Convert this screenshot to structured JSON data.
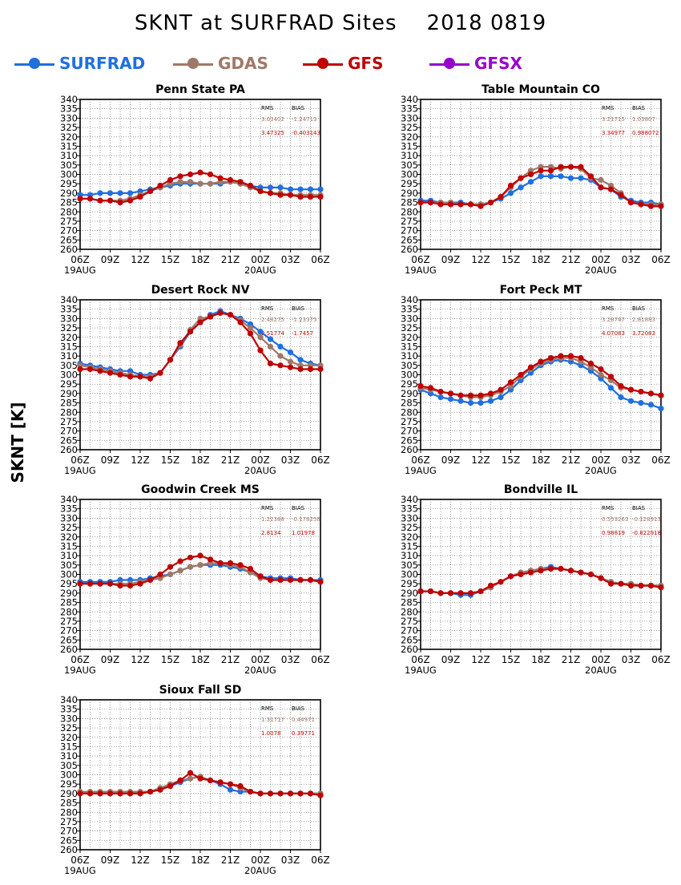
{
  "title": "SKNT at SURFRAD Sites    2018 0819",
  "ylabel": "SKNT [K]",
  "legend": [
    {
      "name": "SURFRAD",
      "color": "#1f6fe0"
    },
    {
      "name": "GDAS",
      "color": "#a07868"
    },
    {
      "name": "GFS",
      "color": "#c00000"
    },
    {
      "name": "GFSX",
      "color": "#9900cc"
    }
  ],
  "chart_data": [
    {
      "type": "line",
      "title": "Penn State PA",
      "xticks": [
        "06Z",
        "09Z",
        "12Z",
        "15Z",
        "18Z",
        "21Z",
        "00Z",
        "03Z",
        "06Z"
      ],
      "xdates": [
        "19AUG",
        "20AUG"
      ],
      "yticks": [
        260,
        265,
        270,
        275,
        280,
        285,
        290,
        295,
        300,
        305,
        310,
        315,
        320,
        325,
        330,
        335,
        340
      ],
      "ylim": [
        260,
        340
      ],
      "x_hours": [
        0,
        1,
        2,
        3,
        4,
        5,
        6,
        7,
        8,
        9,
        10,
        11,
        12,
        13,
        14,
        15,
        16,
        17,
        18,
        19,
        20,
        21,
        22,
        23,
        24
      ],
      "stats": {
        "header": [
          "RMS",
          "BIAS"
        ],
        "rows": [
          [
            "3.03402",
            "-1.24713"
          ],
          [
            "3.47325",
            "-0.403143"
          ]
        ]
      },
      "series": [
        {
          "name": "SURFRAD",
          "values": [
            289,
            289,
            290,
            290,
            290,
            290,
            291,
            292,
            293,
            294,
            295,
            295,
            295,
            295,
            295,
            296,
            295,
            294,
            293,
            293,
            293,
            292,
            292,
            292,
            292
          ]
        },
        {
          "name": "GDAS",
          "values": [
            287,
            287,
            286,
            286,
            286,
            287,
            289,
            291,
            293,
            295,
            296,
            296,
            295,
            295,
            296,
            296,
            295,
            293,
            291,
            290,
            290,
            289,
            289,
            289,
            289
          ]
        },
        {
          "name": "GFS",
          "values": [
            287,
            287,
            286,
            286,
            285,
            286,
            288,
            291,
            294,
            297,
            299,
            300,
            301,
            300,
            298,
            297,
            296,
            294,
            291,
            290,
            289,
            289,
            288,
            288,
            288
          ]
        }
      ]
    },
    {
      "type": "line",
      "title": "Table Mountain CO",
      "xticks": [
        "06Z",
        "09Z",
        "12Z",
        "15Z",
        "18Z",
        "21Z",
        "00Z",
        "03Z",
        "06Z"
      ],
      "xdates": [
        "19AUG",
        "20AUG"
      ],
      "yticks": [
        260,
        265,
        270,
        275,
        280,
        285,
        290,
        295,
        300,
        305,
        310,
        315,
        320,
        325,
        330,
        335,
        340
      ],
      "ylim": [
        260,
        340
      ],
      "x_hours": [
        0,
        1,
        2,
        3,
        4,
        5,
        6,
        7,
        8,
        9,
        10,
        11,
        12,
        13,
        14,
        15,
        16,
        17,
        18,
        19,
        20,
        21,
        22,
        23,
        24
      ],
      "stats": {
        "header": [
          "RMS",
          "BIAS"
        ],
        "rows": [
          [
            "3.21715",
            "1.03807"
          ],
          [
            "3.34977",
            "0.988072"
          ]
        ]
      },
      "series": [
        {
          "name": "SURFRAD",
          "values": [
            286,
            286,
            285,
            285,
            285,
            284,
            284,
            285,
            287,
            290,
            293,
            296,
            299,
            299,
            299,
            298,
            298,
            297,
            293,
            292,
            288,
            286,
            285,
            285,
            284
          ]
        },
        {
          "name": "GDAS",
          "values": [
            285,
            285,
            285,
            285,
            284,
            284,
            284,
            285,
            288,
            293,
            298,
            302,
            304,
            304,
            303,
            304,
            303,
            298,
            297,
            294,
            290,
            285,
            284,
            284,
            284
          ]
        },
        {
          "name": "GFS",
          "values": [
            285,
            285,
            284,
            284,
            284,
            284,
            283,
            285,
            288,
            294,
            298,
            300,
            302,
            302,
            304,
            304,
            304,
            299,
            293,
            292,
            289,
            285,
            284,
            283,
            283
          ]
        }
      ]
    },
    {
      "type": "line",
      "title": "Desert Rock NV",
      "xticks": [
        "06Z",
        "09Z",
        "12Z",
        "15Z",
        "18Z",
        "21Z",
        "00Z",
        "03Z",
        "06Z"
      ],
      "xdates": [
        "19AUG",
        "20AUG"
      ],
      "yticks": [
        260,
        265,
        270,
        275,
        280,
        285,
        290,
        295,
        300,
        305,
        310,
        315,
        320,
        325,
        330,
        335,
        340
      ],
      "ylim": [
        260,
        340
      ],
      "x_hours": [
        0,
        1,
        2,
        3,
        4,
        5,
        6,
        7,
        8,
        9,
        10,
        11,
        12,
        13,
        14,
        15,
        16,
        17,
        18,
        19,
        20,
        21,
        22,
        23,
        24
      ],
      "stats": {
        "header": [
          "RMS",
          "BIAS"
        ],
        "rows": [
          [
            "2.48275",
            "-1.23375"
          ],
          [
            "2.51774",
            "-1.7457"
          ]
        ]
      },
      "series": [
        {
          "name": "SURFRAD",
          "values": [
            306,
            305,
            304,
            303,
            302,
            302,
            300,
            300,
            301,
            308,
            315,
            323,
            328,
            332,
            334,
            332,
            330,
            327,
            323,
            319,
            315,
            312,
            308,
            306,
            305
          ]
        },
        {
          "name": "GDAS",
          "values": [
            305,
            304,
            303,
            302,
            301,
            300,
            299,
            299,
            301,
            308,
            316,
            324,
            330,
            331,
            333,
            332,
            329,
            325,
            320,
            315,
            310,
            307,
            305,
            305,
            305
          ]
        },
        {
          "name": "GFS",
          "values": [
            303,
            303,
            302,
            301,
            300,
            299,
            299,
            298,
            301,
            308,
            317,
            323,
            328,
            331,
            333,
            332,
            328,
            322,
            313,
            306,
            305,
            304,
            303,
            303,
            303
          ]
        }
      ]
    },
    {
      "type": "line",
      "title": "Fort Peck MT",
      "xticks": [
        "06Z",
        "09Z",
        "12Z",
        "15Z",
        "18Z",
        "21Z",
        "00Z",
        "03Z",
        "06Z"
      ],
      "xdates": [
        "19AUG",
        "20AUG"
      ],
      "yticks": [
        260,
        265,
        270,
        275,
        280,
        285,
        290,
        295,
        300,
        305,
        310,
        315,
        320,
        325,
        330,
        335,
        340
      ],
      "ylim": [
        260,
        340
      ],
      "x_hours": [
        0,
        1,
        2,
        3,
        4,
        5,
        6,
        7,
        8,
        9,
        10,
        11,
        12,
        13,
        14,
        15,
        16,
        17,
        18,
        19,
        20,
        21,
        22,
        23,
        24
      ],
      "stats": {
        "header": [
          "RMS",
          "BIAS"
        ],
        "rows": [
          [
            "3.28747",
            "2.81883"
          ],
          [
            "4.07083",
            "3.72083"
          ]
        ]
      },
      "series": [
        {
          "name": "SURFRAD",
          "values": [
            292,
            290,
            288,
            287,
            286,
            285,
            285,
            286,
            288,
            292,
            297,
            301,
            305,
            307,
            308,
            307,
            305,
            302,
            298,
            293,
            288,
            286,
            285,
            284,
            282
          ]
        },
        {
          "name": "GDAS",
          "values": [
            293,
            292,
            291,
            290,
            289,
            288,
            288,
            289,
            291,
            294,
            299,
            303,
            306,
            308,
            309,
            309,
            307,
            304,
            300,
            297,
            293,
            292,
            291,
            290,
            289
          ]
        },
        {
          "name": "GFS",
          "values": [
            294,
            293,
            291,
            290,
            289,
            289,
            289,
            290,
            292,
            296,
            300,
            304,
            307,
            309,
            310,
            310,
            309,
            306,
            303,
            299,
            294,
            292,
            291,
            290,
            289
          ]
        }
      ]
    },
    {
      "type": "line",
      "title": "Goodwin Creek MS",
      "xticks": [
        "06Z",
        "09Z",
        "12Z",
        "15Z",
        "18Z",
        "21Z",
        "00Z",
        "03Z",
        "06Z"
      ],
      "xdates": [
        "19AUG",
        "20AUG"
      ],
      "yticks": [
        260,
        265,
        270,
        275,
        280,
        285,
        290,
        295,
        300,
        305,
        310,
        315,
        320,
        325,
        330,
        335,
        340
      ],
      "ylim": [
        260,
        340
      ],
      "x_hours": [
        0,
        1,
        2,
        3,
        4,
        5,
        6,
        7,
        8,
        9,
        10,
        11,
        12,
        13,
        14,
        15,
        16,
        17,
        18,
        19,
        20,
        21,
        22,
        23,
        24
      ],
      "stats": {
        "header": [
          "RMS",
          "BIAS"
        ],
        "rows": [
          [
            "1.22388",
            "-0.178258"
          ],
          [
            "2.8134",
            "1.01978"
          ]
        ]
      },
      "series": [
        {
          "name": "SURFRAD",
          "values": [
            296,
            296,
            296,
            296,
            297,
            297,
            297,
            298,
            299,
            300,
            302,
            304,
            305,
            305,
            305,
            304,
            303,
            301,
            299,
            298,
            298,
            298,
            297,
            297,
            297
          ]
        },
        {
          "name": "GDAS",
          "values": [
            295,
            295,
            295,
            295,
            295,
            295,
            296,
            297,
            298,
            300,
            302,
            304,
            305,
            306,
            306,
            305,
            304,
            301,
            298,
            297,
            297,
            297,
            297,
            297,
            296
          ]
        },
        {
          "name": "GFS",
          "values": [
            295,
            295,
            295,
            295,
            294,
            294,
            295,
            297,
            300,
            304,
            307,
            309,
            310,
            308,
            306,
            306,
            305,
            303,
            299,
            297,
            297,
            297,
            297,
            297,
            296
          ]
        }
      ]
    },
    {
      "type": "line",
      "title": "Bondville IL",
      "xticks": [
        "06Z",
        "09Z",
        "12Z",
        "15Z",
        "18Z",
        "21Z",
        "00Z",
        "03Z",
        "06Z"
      ],
      "xdates": [
        "19AUG",
        "20AUG"
      ],
      "yticks": [
        260,
        265,
        270,
        275,
        280,
        285,
        290,
        295,
        300,
        305,
        310,
        315,
        320,
        325,
        330,
        335,
        340
      ],
      "ylim": [
        260,
        340
      ],
      "x_hours": [
        0,
        1,
        2,
        3,
        4,
        5,
        6,
        7,
        8,
        9,
        10,
        11,
        12,
        13,
        14,
        15,
        16,
        17,
        18,
        19,
        20,
        21,
        22,
        23,
        24
      ],
      "stats": {
        "header": [
          "RMS",
          "BIAS"
        ],
        "rows": [
          [
            "0.553263",
            "-0.128913"
          ],
          [
            "0.98819",
            "-0.822918"
          ]
        ]
      },
      "series": [
        {
          "name": "SURFRAD",
          "values": [
            291,
            291,
            290,
            290,
            289,
            289,
            291,
            293,
            296,
            299,
            301,
            302,
            303,
            304,
            303,
            302,
            301,
            300,
            298,
            296,
            295,
            295,
            294,
            294,
            294
          ]
        },
        {
          "name": "GDAS",
          "values": [
            291,
            291,
            290,
            290,
            290,
            290,
            291,
            293,
            296,
            299,
            301,
            302,
            303,
            303,
            303,
            302,
            301,
            300,
            298,
            296,
            295,
            295,
            294,
            294,
            294
          ]
        },
        {
          "name": "GFS",
          "values": [
            291,
            291,
            290,
            290,
            290,
            290,
            291,
            294,
            296,
            299,
            300,
            301,
            302,
            303,
            303,
            302,
            301,
            300,
            298,
            295,
            295,
            294,
            294,
            294,
            293
          ]
        }
      ]
    },
    {
      "type": "line",
      "title": "Sioux Fall SD",
      "xticks": [
        "06Z",
        "09Z",
        "12Z",
        "15Z",
        "18Z",
        "21Z",
        "00Z",
        "03Z",
        "06Z"
      ],
      "xdates": [
        "19AUG",
        "20AUG"
      ],
      "yticks": [
        260,
        265,
        270,
        275,
        280,
        285,
        290,
        295,
        300,
        305,
        310,
        315,
        320,
        325,
        330,
        335,
        340
      ],
      "ylim": [
        260,
        340
      ],
      "x_hours": [
        0,
        1,
        2,
        3,
        4,
        5,
        6,
        7,
        8,
        9,
        10,
        11,
        12,
        13,
        14,
        15,
        16,
        17,
        18,
        19,
        20,
        21,
        22,
        23,
        24
      ],
      "stats": {
        "header": [
          "RMS",
          "BIAS"
        ],
        "rows": [
          [
            "1.31717",
            "0.44971"
          ],
          [
            "1.0078",
            "0.39771"
          ]
        ]
      },
      "series": [
        {
          "name": "SURFRAD",
          "values": [
            290,
            290,
            290,
            290,
            290,
            290,
            290,
            291,
            292,
            294,
            296,
            298,
            299,
            297,
            295,
            292,
            291,
            291,
            290,
            290,
            290,
            290,
            290,
            290,
            290
          ]
        },
        {
          "name": "GDAS",
          "values": [
            291,
            291,
            291,
            291,
            291,
            291,
            291,
            291,
            293,
            295,
            297,
            298,
            299,
            297,
            296,
            295,
            293,
            291,
            290,
            290,
            290,
            290,
            290,
            290,
            290
          ]
        },
        {
          "name": "GFS",
          "values": [
            290,
            290,
            290,
            290,
            290,
            290,
            290,
            291,
            292,
            294,
            297,
            301,
            298,
            297,
            296,
            295,
            294,
            291,
            290,
            290,
            290,
            290,
            290,
            290,
            289
          ]
        }
      ]
    }
  ]
}
